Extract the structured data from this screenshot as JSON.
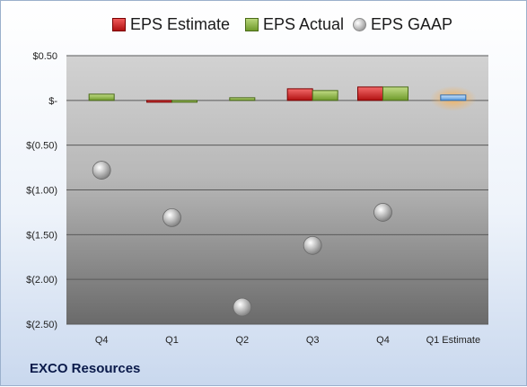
{
  "chart_data": {
    "type": "bar",
    "categories": [
      "Q4",
      "Q1",
      "Q2",
      "Q3",
      "Q4",
      "Q1 Estimate"
    ],
    "series": [
      {
        "name": "EPS Estimate",
        "values": [
          null,
          -0.02,
          null,
          0.13,
          0.15,
          0.06
        ],
        "color": "#c81e1e"
      },
      {
        "name": "EPS Actual",
        "values": [
          0.07,
          -0.01,
          0.03,
          0.11,
          0.15,
          null
        ],
        "color": "#8db440"
      },
      {
        "name": "EPS GAAP",
        "values": [
          -0.78,
          -1.31,
          -2.31,
          -1.62,
          -1.25,
          null
        ],
        "color": "#a8a8a8",
        "marker": "sphere"
      }
    ],
    "estimate_highlight_color": "#5aa0e6",
    "yticks": [
      "$0.50",
      "$-",
      "$(0.50)",
      "$(1.00)",
      "$(1.50)",
      "$(2.00)",
      "$(2.50)"
    ],
    "ytick_values": [
      0.5,
      0,
      -0.5,
      -1.0,
      -1.5,
      -2.0,
      -2.5
    ],
    "ylim": [
      -2.5,
      0.5
    ],
    "grid": true,
    "legend_position": "top",
    "title": "",
    "xlabel": "",
    "ylabel": ""
  },
  "company_name": "EXCO Resources"
}
